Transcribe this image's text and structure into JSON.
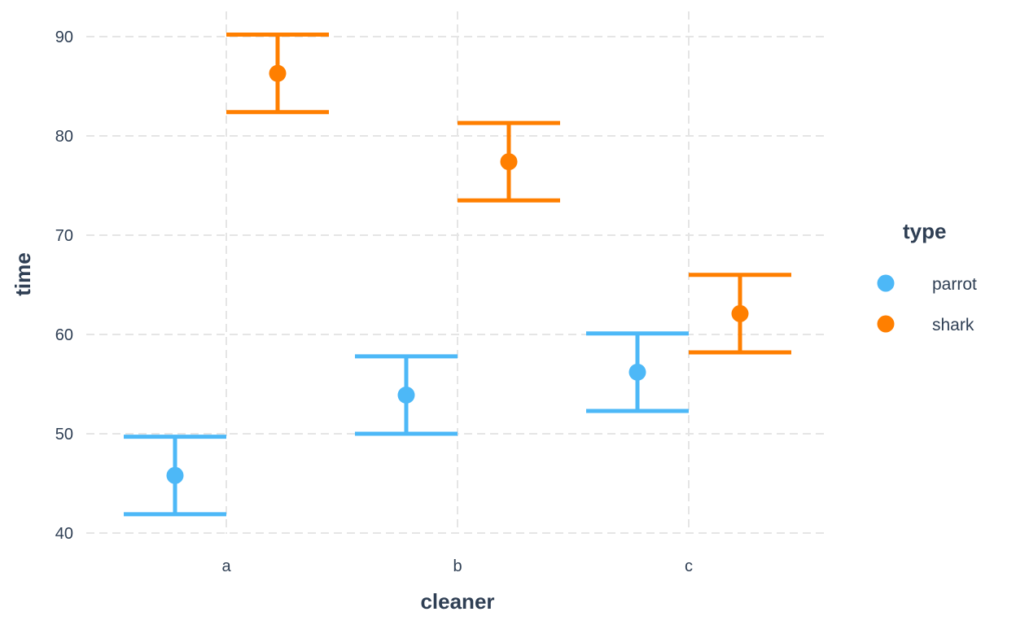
{
  "chart_data": {
    "type": "errorbar",
    "xlabel": "cleaner",
    "ylabel": "time",
    "categories": [
      "a",
      "b",
      "c"
    ],
    "ylim": [
      38.5,
      92.5
    ],
    "yticks": [
      40,
      50,
      60,
      70,
      80,
      90
    ],
    "ytick_labels": [
      "40",
      "50",
      "60",
      "70",
      "80",
      "90"
    ],
    "grid": true,
    "legend": {
      "title": "type",
      "position": "right",
      "entries": [
        "parrot",
        "shark"
      ]
    },
    "series": [
      {
        "name": "parrot",
        "color": "#4DB8F7",
        "points": [
          {
            "category": "a",
            "value": 45.8,
            "lower": 41.9,
            "upper": 49.7
          },
          {
            "category": "b",
            "value": 53.9,
            "lower": 50.0,
            "upper": 57.8
          },
          {
            "category": "c",
            "value": 56.2,
            "lower": 52.3,
            "upper": 60.1
          }
        ]
      },
      {
        "name": "shark",
        "color": "#FF7F00",
        "points": [
          {
            "category": "a",
            "value": 86.3,
            "lower": 82.4,
            "upper": 90.2
          },
          {
            "category": "b",
            "value": 77.4,
            "lower": 73.5,
            "upper": 81.3
          },
          {
            "category": "c",
            "value": 62.1,
            "lower": 58.2,
            "upper": 66.0
          }
        ]
      }
    ]
  }
}
